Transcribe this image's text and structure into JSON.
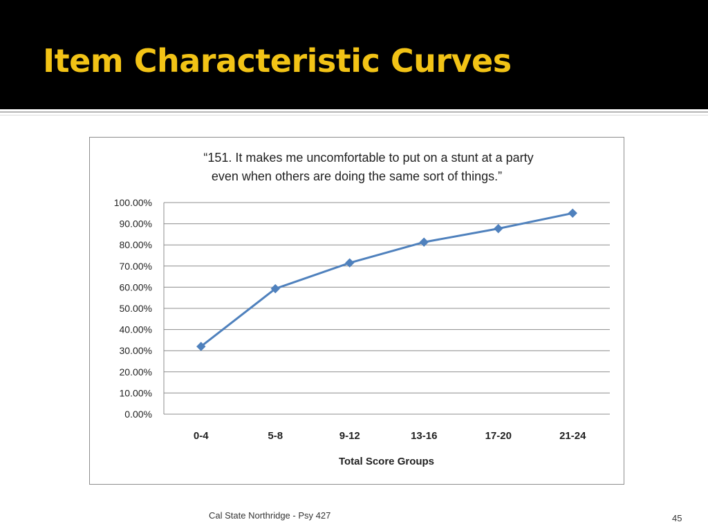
{
  "slide": {
    "title": "Item Characteristic Curves",
    "footer": "Cal State Northridge - Psy 427",
    "page_number": "45"
  },
  "colors": {
    "title_bar": "#000000",
    "title_text": "#f2c316",
    "series_line": "#4f81bd",
    "gridline": "#8c8c8c"
  },
  "chart_data": {
    "type": "line",
    "title_lines": [
      "“151. It makes me uncomfortable to put on a stunt at a party",
      "even when others are doing the same sort of things.”"
    ],
    "xlabel": "Total Score Groups",
    "ylabel": "",
    "categories": [
      "0-4",
      "5-8",
      "9-12",
      "13-16",
      "17-20",
      "21-24"
    ],
    "series": [
      {
        "values": [
          0.32,
          0.593,
          0.715,
          0.813,
          0.877,
          0.95
        ],
        "marker": "diamond"
      }
    ],
    "ylim": [
      0,
      1
    ],
    "y_ticks": [
      0,
      0.1,
      0.2,
      0.3,
      0.4,
      0.5,
      0.6,
      0.7,
      0.8,
      0.9,
      1.0
    ],
    "y_tick_labels": [
      "0.00%",
      "10.00%",
      "20.00%",
      "30.00%",
      "40.00%",
      "50.00%",
      "60.00%",
      "70.00%",
      "80.00%",
      "90.00%",
      "100.00%"
    ],
    "grid": true,
    "legend": "none"
  }
}
